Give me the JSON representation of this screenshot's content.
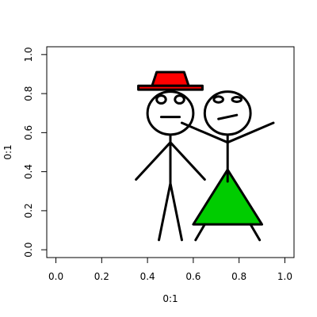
{
  "chart_data": {
    "type": "line",
    "title": "",
    "xlabel": "0:1",
    "ylabel": "0:1",
    "xlim": [
      -0.04,
      1.04
    ],
    "ylim": [
      -0.04,
      1.04
    ],
    "xticks": [
      0.0,
      0.2,
      0.4,
      0.6,
      0.8,
      1.0
    ],
    "yticks": [
      0.0,
      0.2,
      0.4,
      0.6,
      0.8,
      1.0
    ],
    "xtick_labels": [
      "0.0",
      "0.2",
      "0.4",
      "0.6",
      "0.8",
      "1.0"
    ],
    "ytick_labels": [
      "0.0",
      "0.2",
      "0.4",
      "0.6",
      "0.8",
      "1.0"
    ],
    "grid": false,
    "legend": "none",
    "colors": {
      "hat": "#ff0000",
      "dress": "#00cc00",
      "line": "#000000",
      "background": "#ffffff"
    },
    "figures": [
      {
        "name": "man",
        "head": {
          "center": [
            0.5,
            0.7
          ],
          "rx": 0.1,
          "ry": 0.11
        },
        "hat": {
          "brim": [
            [
              0.36,
              0.84
            ],
            [
              0.64,
              0.84
            ],
            [
              0.64,
              0.82
            ],
            [
              0.36,
              0.82
            ]
          ],
          "crown": [
            [
              0.42,
              0.84
            ],
            [
              0.58,
              0.84
            ],
            [
              0.56,
              0.91
            ],
            [
              0.44,
              0.91
            ]
          ]
        },
        "eyes": [
          {
            "center": [
              0.46,
              0.77
            ],
            "rx": 0.02,
            "ry": 0.02
          },
          {
            "center": [
              0.54,
              0.77
            ],
            "rx": 0.02,
            "ry": 0.02
          }
        ],
        "mouth": [
          [
            0.46,
            0.68
          ],
          [
            0.54,
            0.68
          ]
        ],
        "body": [
          [
            0.5,
            0.59
          ],
          [
            0.5,
            0.34
          ]
        ],
        "arms": [
          [
            [
              0.5,
              0.55
            ],
            [
              0.35,
              0.36
            ]
          ],
          [
            [
              0.5,
              0.55
            ],
            [
              0.65,
              0.36
            ]
          ]
        ],
        "legs": [
          [
            [
              0.5,
              0.34
            ],
            [
              0.45,
              0.05
            ]
          ],
          [
            [
              0.5,
              0.34
            ],
            [
              0.55,
              0.05
            ]
          ]
        ]
      },
      {
        "name": "woman",
        "head": {
          "center": [
            0.75,
            0.7
          ],
          "rx": 0.1,
          "ry": 0.11
        },
        "eyes": [
          {
            "center": [
              0.71,
              0.77
            ],
            "rx": 0.02,
            "ry": 0.015
          },
          {
            "center": [
              0.79,
              0.77
            ],
            "rx": 0.02,
            "ry": 0.012
          }
        ],
        "mouth": [
          [
            0.71,
            0.67
          ],
          [
            0.79,
            0.69
          ]
        ],
        "body": [
          [
            0.75,
            0.59
          ],
          [
            0.75,
            0.35
          ]
        ],
        "arms": [
          [
            [
              0.75,
              0.55
            ],
            [
              0.55,
              0.65
            ]
          ],
          [
            [
              0.75,
              0.55
            ],
            [
              0.95,
              0.65
            ]
          ]
        ],
        "dress": [
          [
            0.6,
            0.13
          ],
          [
            0.9,
            0.13
          ],
          [
            0.75,
            0.41
          ]
        ],
        "legs": [
          [
            [
              0.65,
              0.13
            ],
            [
              0.61,
              0.05
            ]
          ],
          [
            [
              0.85,
              0.13
            ],
            [
              0.89,
              0.05
            ]
          ]
        ]
      }
    ]
  }
}
